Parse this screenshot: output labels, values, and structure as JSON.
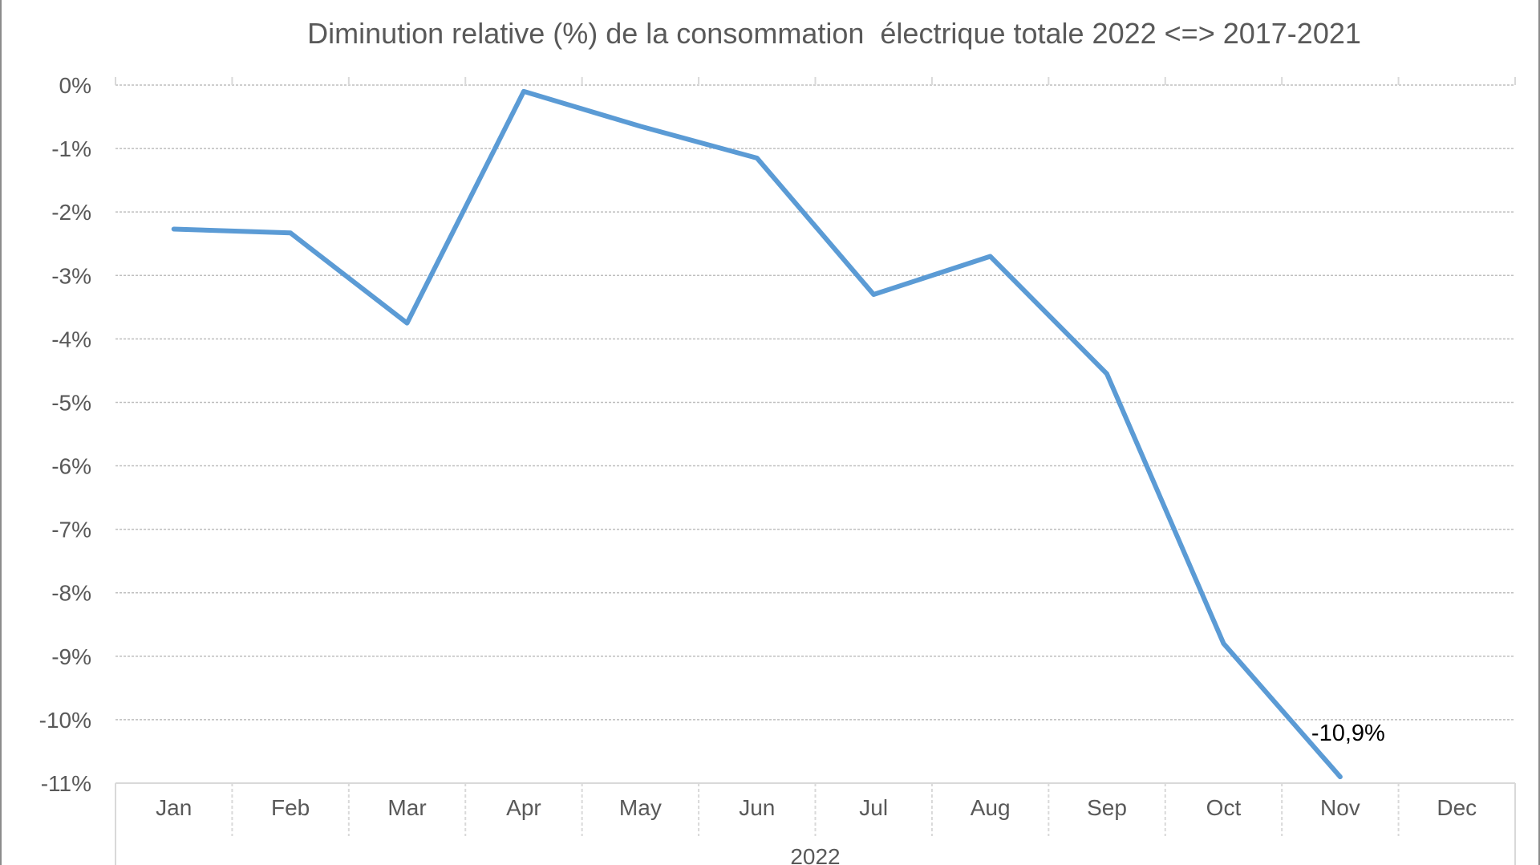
{
  "chart_data": {
    "type": "line",
    "title": "Diminution relative (%) de la consommation  électrique totale 2022 <=> 2017-2021",
    "categories": [
      "Jan",
      "Feb",
      "Mar",
      "Apr",
      "May",
      "Jun",
      "Jul",
      "Aug",
      "Sep",
      "Oct",
      "Nov",
      "Dec"
    ],
    "category_group": "2022",
    "series": [
      {
        "values": [
          -2.27,
          -2.33,
          -3.75,
          -0.1,
          -0.65,
          -1.15,
          -3.3,
          -2.7,
          -4.55,
          -8.8,
          -10.9,
          null
        ]
      }
    ],
    "ylim": [
      -11,
      0
    ],
    "yticks": [
      0,
      -1,
      -2,
      -3,
      -4,
      -5,
      -6,
      -7,
      -8,
      -9,
      -10,
      -11
    ],
    "ytick_labels": [
      "0%",
      "-1%",
      "-2%",
      "-3%",
      "-4%",
      "-5%",
      "-6%",
      "-7%",
      "-8%",
      "-9%",
      "-10%",
      "-11%"
    ],
    "data_labels": [
      {
        "category": "Nov",
        "text": "-10,9%"
      }
    ],
    "grid": true,
    "legend": "none",
    "colors": {
      "line": "#5b9bd5",
      "grid": "#bfbfbf",
      "text": "#595959",
      "axis": "#d9d9d9"
    }
  }
}
